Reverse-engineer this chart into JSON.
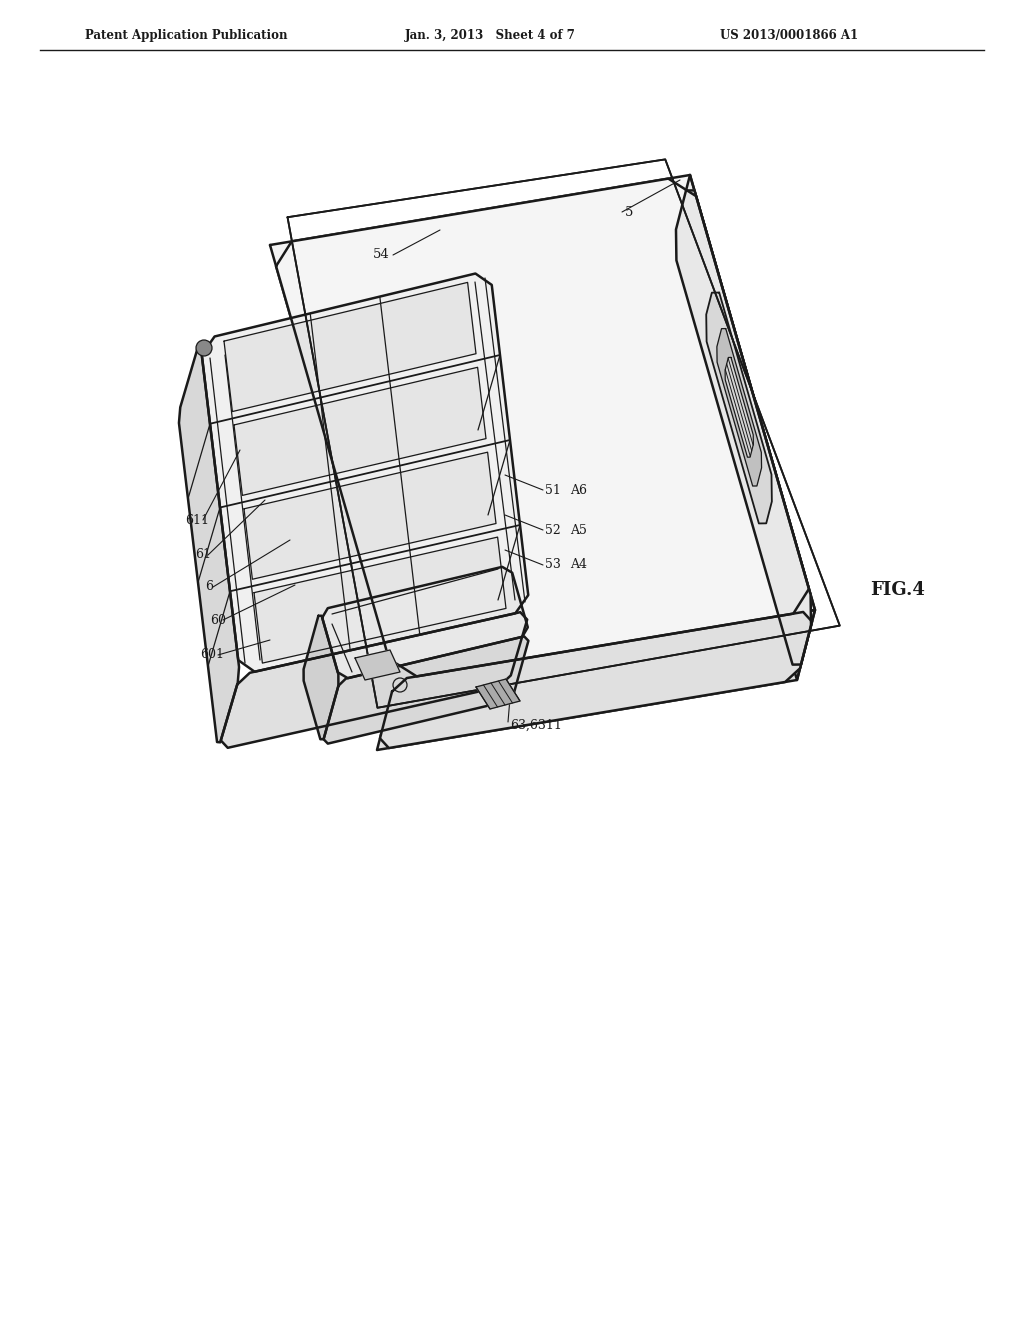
{
  "header_left": "Patent Application Publication",
  "header_center": "Jan. 3, 2013   Sheet 4 of 7",
  "header_right": "US 2013/0001866 A1",
  "fig_label": "FIG.4",
  "bg_color": "#ffffff",
  "lc": "#1a1a1a",
  "lw_main": 1.8,
  "lw_med": 1.3,
  "lw_thin": 0.9,
  "lw_label": 0.8
}
